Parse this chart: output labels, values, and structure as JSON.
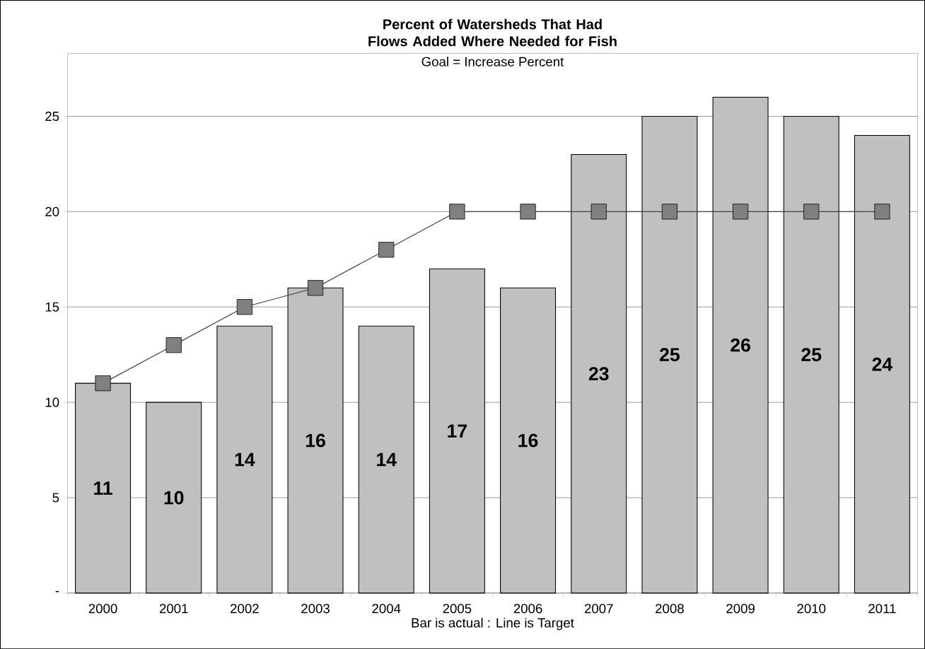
{
  "chart_data": {
    "type": "bar",
    "title": "Percent of Watersheds That Had Flows Added Where Needed for Fish",
    "subtitle": "Goal = Increase Percent",
    "xlabel": "Bar is actual  :  Line is Target",
    "categories": [
      "2000",
      "2001",
      "2002",
      "2003",
      "2004",
      "2005",
      "2006",
      "2007",
      "2008",
      "2009",
      "2010",
      "2011"
    ],
    "series": [
      {
        "color": "#c0c0c0",
        "values": [
          11,
          10,
          14,
          16,
          14,
          17,
          16,
          23,
          25,
          26,
          25,
          24
        ],
        "value_labels": [
          "11",
          "10",
          "14",
          "16",
          "14",
          "17",
          "16",
          "23",
          "25",
          "26",
          "25",
          "24"
        ]
      },
      {
        "type": "line",
        "color": "#404040",
        "marker": "square",
        "values": [
          11,
          13,
          15,
          16,
          18,
          20,
          20,
          20,
          20,
          20,
          20,
          20
        ]
      }
    ],
    "ylim": [
      0,
      28.3
    ],
    "yticks": [
      {
        "value": 0,
        "label": "-"
      },
      5,
      10,
      15,
      20,
      25
    ],
    "grid": "y"
  }
}
